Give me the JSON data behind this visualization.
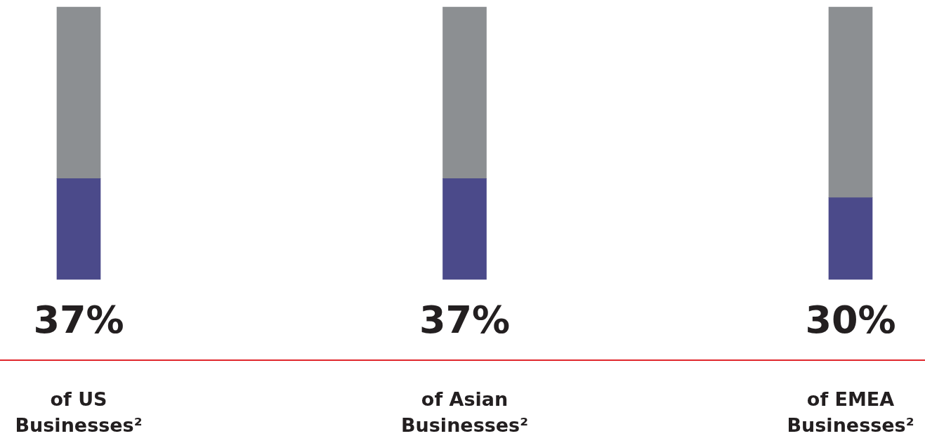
{
  "chart_data": {
    "type": "bar",
    "stacked": true,
    "categories": [
      "of US Businesses²",
      "of Asian Businesses²",
      "of EMEA Businesses²"
    ],
    "series": [
      {
        "color": "#4b4a8a",
        "values": [
          37,
          37,
          30
        ],
        "value_labels": [
          "37%",
          "37%",
          "30%"
        ]
      },
      {
        "color": "#8c8f92",
        "values": [
          63,
          63,
          70
        ]
      }
    ],
    "ylim": [
      0,
      100
    ],
    "tick_labels": false,
    "legend": false
  }
}
